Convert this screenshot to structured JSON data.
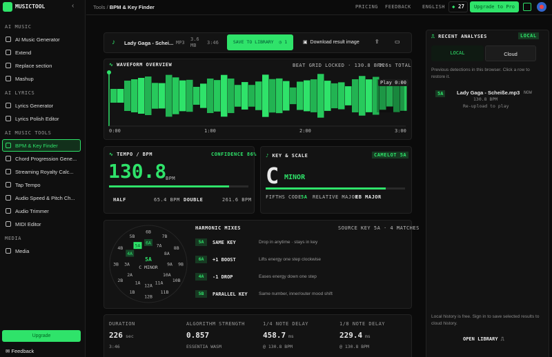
{
  "sidebar": {
    "brand": "MUSICTOOL",
    "collapse": "‹",
    "sections": [
      {
        "title": "AI MUSIC",
        "items": [
          "AI Music Generator",
          "Extend",
          "Replace section",
          "Mashup"
        ]
      },
      {
        "title": "AI LYRICS",
        "items": [
          "Lyrics Generator",
          "Lyrics Polish Editor"
        ]
      },
      {
        "title": "AI MUSIC TOOLS",
        "items": [
          "BPM & Key Finder",
          "Chord Progression Gene...",
          "Streaming Royalty Calc...",
          "Tap Tempo",
          "Audio Speed & Pitch Ch...",
          "Audio Trimmer",
          "MIDI Editor"
        ]
      },
      {
        "title": "MEDIA",
        "items": [
          "Media"
        ]
      }
    ],
    "active": "BPM & Key Finder",
    "upgrade": "Upgrade",
    "feedback": "Feedback"
  },
  "topbar": {
    "breadcrumb_root": "Tools",
    "breadcrumb_sep": "/",
    "breadcrumb_current": "BPM & Key Finder",
    "links": [
      "PRICING",
      "FEEDBACK",
      "ENGLISH"
    ],
    "credits": "27",
    "upgrade": "Upgrade to Pro"
  },
  "file": {
    "name": "Lady Gaga - Schei...",
    "format": "MP3",
    "size": "3.6 MB",
    "duration": "3:46",
    "save": "SAVE TO LIBRARY",
    "save_count": "1",
    "download": "Download result image"
  },
  "waveform": {
    "title": "WAVEFORM OVERVIEW",
    "beat_grid": "BEAT GRID LOCKED · 130.8 BPM",
    "total": "226s TOTAL",
    "play": "Play 0:00",
    "ticks": [
      "0:00",
      "1:00",
      "2:00",
      "3:00"
    ]
  },
  "tempo": {
    "title": "TEMPO / BPM",
    "confidence": "CONFIDENCE 86%",
    "bpm": "130.8",
    "unit": "BPM",
    "half_label": "HALF",
    "half": "65.4 BPM",
    "double_label": "DOUBLE",
    "double": "261.6 BPM"
  },
  "key": {
    "title": "KEY & SCALE",
    "camelot": "CAMELOT 5A",
    "note": "C",
    "scale": "MINOR",
    "fifths_label": "FIFTHS CODE",
    "fifths": "5A",
    "relative_label": "RELATIVE MAJOR",
    "relative": "EB MAJOR"
  },
  "wheel": {
    "outer": [
      "6B",
      "7B",
      "8B",
      "9B",
      "10B",
      "11B",
      "12B",
      "1B",
      "2B",
      "3B",
      "4B",
      "5B"
    ],
    "inner": [
      "6A",
      "7A",
      "8A",
      "9A",
      "10A",
      "11A",
      "12A",
      "1A",
      "2A",
      "3A",
      "4A",
      "5A"
    ],
    "center_key": "5A",
    "center_scale": "C MINOR"
  },
  "mixes": {
    "title": "HARMONIC MIXES",
    "source": "SOURCE KEY 5A · 4 MATCHES",
    "rows": [
      {
        "key": "5A",
        "name": "SAME KEY",
        "desc": "Drop in anytime · stays in key"
      },
      {
        "key": "6A",
        "name": "+1 BOOST",
        "desc": "Lifts energy one step clockwise"
      },
      {
        "key": "4A",
        "name": "-1 DROP",
        "desc": "Eases energy down one step"
      },
      {
        "key": "5B",
        "name": "PARALLEL KEY",
        "desc": "Same number, inner/outer mood shift"
      }
    ]
  },
  "stats": [
    {
      "label": "DURATION",
      "value": "226",
      "unit": "sec",
      "sub": "3:46"
    },
    {
      "label": "ALGORITHM STRENGTH",
      "value": "0.857",
      "unit": "",
      "sub": "ESSENTIA WASM"
    },
    {
      "label": "1/4 NOTE DELAY",
      "value": "458.7",
      "unit": "ms",
      "sub": "@ 130.8 BPM"
    },
    {
      "label": "1/8 NOTE DELAY",
      "value": "229.4",
      "unit": "ms",
      "sub": "@ 130.8 BPM"
    }
  ],
  "recent": {
    "title": "RECENT ANALYSES",
    "badge": "LOCAL",
    "tab_local": "LOCAL",
    "tab_cloud": "Cloud",
    "hint": "Previous detections in this browser. Click a row to restore it.",
    "item": {
      "key": "5A",
      "name": "Lady Gaga - Scheiße.mp3",
      "bpm": "130.8 BPM",
      "note": "Re-upload to play",
      "time": "NOW"
    },
    "footer": "Local history is free. Sign in to save selected results to cloud history.",
    "open": "OPEN LIBRARY"
  }
}
